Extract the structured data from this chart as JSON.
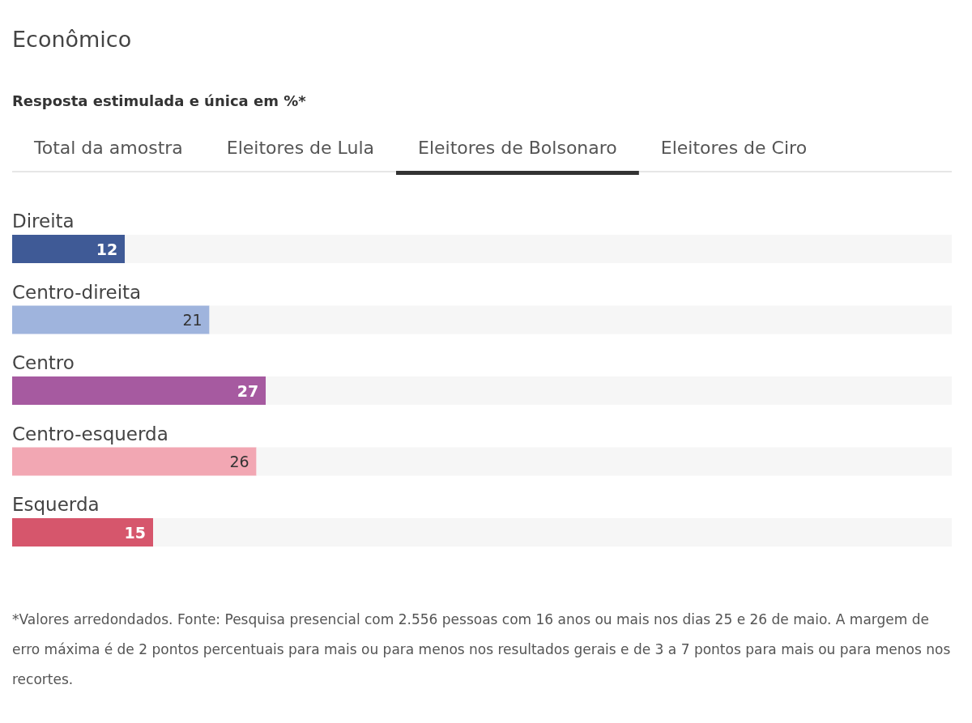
{
  "chart_data": {
    "type": "bar",
    "orientation": "horizontal",
    "stacked": true,
    "title": "Econômico",
    "subtitle": "Resposta estimulada e única em %*",
    "annotations": [
      "Total da amostra",
      "Eleitores de Lula",
      "Eleitores de Bolsonaro",
      "Eleitores de Ciro",
      "*Valores arredondados. Fonte: Pesquisa presencial com 2.556 pessoas com 16 anos ou mais nos dias 25 e 26 de maio. A margem de erro máxima é de 2 pontos percentuais para mais ou para menos nos resultados gerais e de 3 a 7 pontos para mais ou para menos nos recortes."
    ],
    "categories": [
      "Direita",
      "Centro-direita",
      "Centro",
      "Centro-esquerda",
      "Esquerda"
    ],
    "series": [
      {
        "colors": [
          "#3f5a96",
          "#9fb4dd",
          "#a65aa0",
          "#f2a7b3",
          "#d6566c"
        ],
        "values": [
          12,
          21,
          27,
          26,
          15
        ],
        "value_labels": [
          "12",
          "21",
          "27",
          "26",
          "15"
        ]
      },
      {
        "color": "#f6f6f6",
        "values": [
          88,
          79,
          73,
          74,
          85
        ]
      }
    ],
    "xlim": [
      0,
      100
    ],
    "tick_labels": "y"
  }
}
